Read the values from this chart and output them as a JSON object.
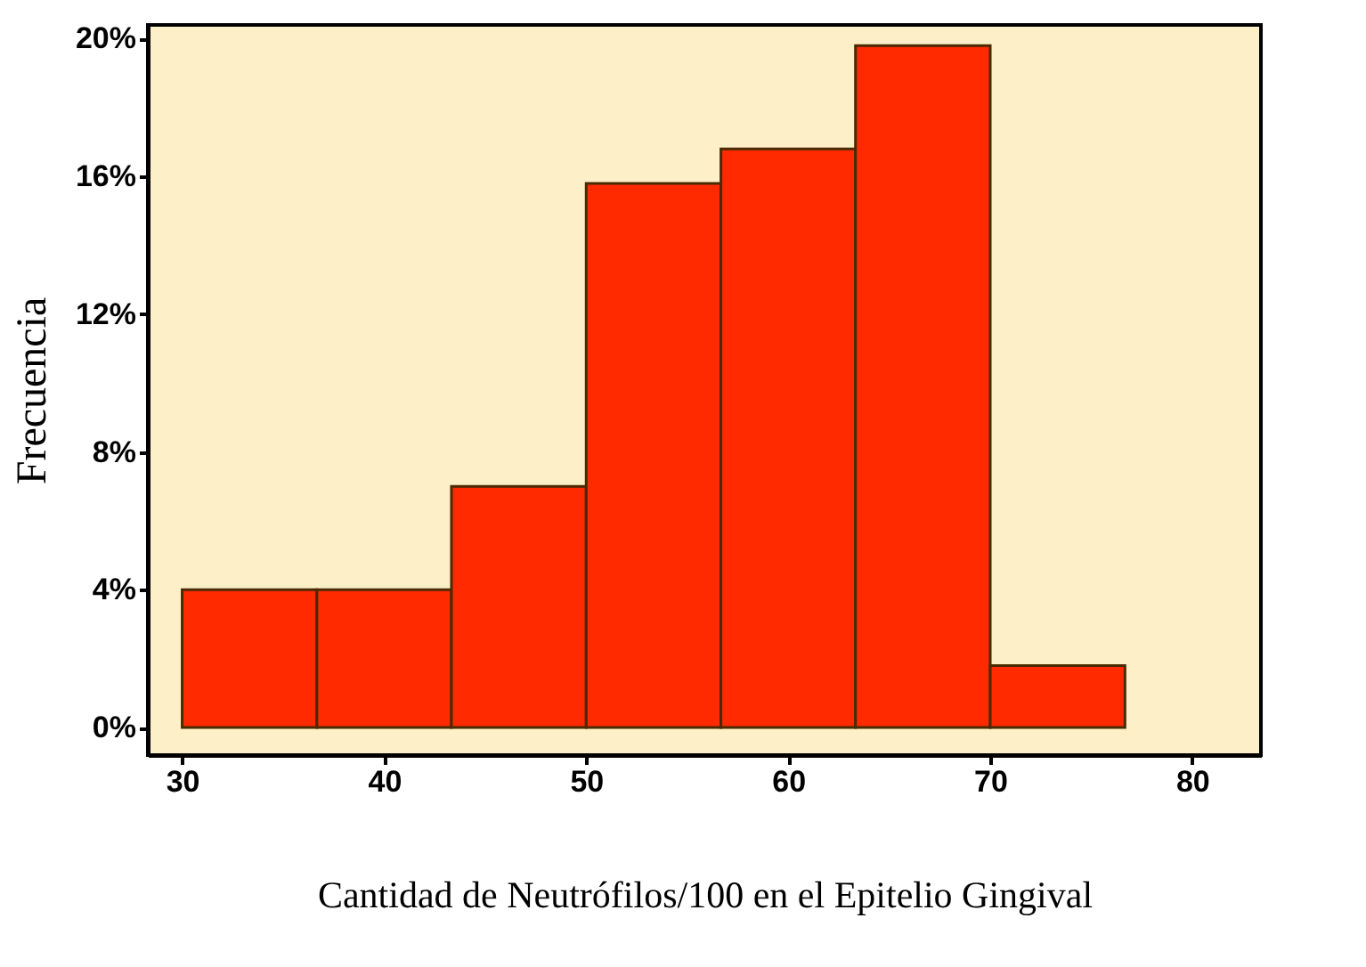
{
  "chart_data": {
    "type": "histogram",
    "xlabel": "Cantidad de Neutrófilos/100 en el Epitelio Gingival",
    "ylabel": "Frecuencia",
    "bins": [
      30,
      36.67,
      43.33,
      50,
      56.67,
      63.33,
      70,
      76.67
    ],
    "values": [
      4,
      4,
      7,
      15.8,
      16.8,
      19.8,
      1.8
    ],
    "color": "#ff2a00",
    "xlim": [
      28.3,
      83.4
    ],
    "xticks": [
      30,
      40,
      50,
      60,
      70,
      80
    ],
    "ylim": [
      -0.8,
      20.4
    ],
    "yticks": [
      {
        "value": 0,
        "label": "0%"
      },
      {
        "value": 4,
        "label": "4%"
      },
      {
        "value": 8,
        "label": "8%"
      },
      {
        "value": 12,
        "label": "12%"
      },
      {
        "value": 16,
        "label": "16%"
      },
      {
        "value": 20,
        "label": "20%"
      }
    ],
    "grid": false
  }
}
